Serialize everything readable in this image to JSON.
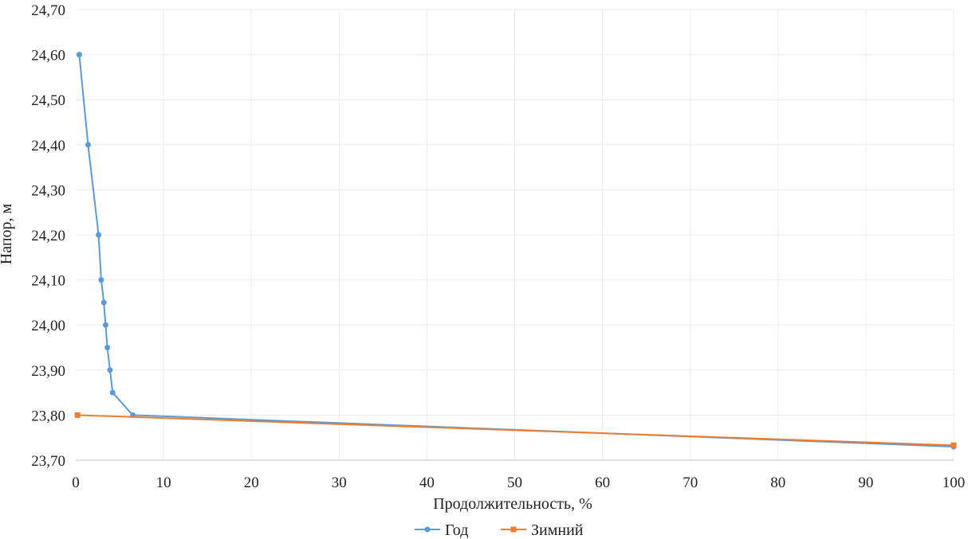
{
  "chart_data": {
    "type": "line",
    "xlabel": "Продолжительность, %",
    "ylabel": "Напор, м",
    "xlim": [
      0,
      100
    ],
    "ylim": [
      23.7,
      24.7
    ],
    "x_ticks": [
      0,
      10,
      20,
      30,
      40,
      50,
      60,
      70,
      80,
      90,
      100
    ],
    "y_ticks": [
      23.7,
      23.8,
      23.9,
      24.0,
      24.1,
      24.2,
      24.3,
      24.4,
      24.5,
      24.6,
      24.7
    ],
    "x_tick_labels": [
      "0",
      "10",
      "20",
      "30",
      "40",
      "50",
      "60",
      "70",
      "80",
      "90",
      "100"
    ],
    "y_tick_labels": [
      "23,70",
      "23,80",
      "23,90",
      "24,00",
      "24,10",
      "24,20",
      "24,30",
      "24,40",
      "24,50",
      "24,60",
      "24,70"
    ],
    "grid": true,
    "legend_position": "bottom",
    "series": [
      {
        "name": "Год",
        "color": "#5b9bd5",
        "marker": "circle",
        "x": [
          0.4,
          1.4,
          2.6,
          2.9,
          3.2,
          3.4,
          3.6,
          3.9,
          4.2,
          6.5,
          100
        ],
        "y": [
          24.6,
          24.4,
          24.2,
          24.1,
          24.05,
          24.0,
          23.95,
          23.9,
          23.85,
          23.8,
          23.73
        ]
      },
      {
        "name": "Зимний",
        "color": "#ed7d31",
        "marker": "square",
        "x": [
          0.2,
          100
        ],
        "y": [
          23.8,
          23.733
        ]
      }
    ]
  }
}
